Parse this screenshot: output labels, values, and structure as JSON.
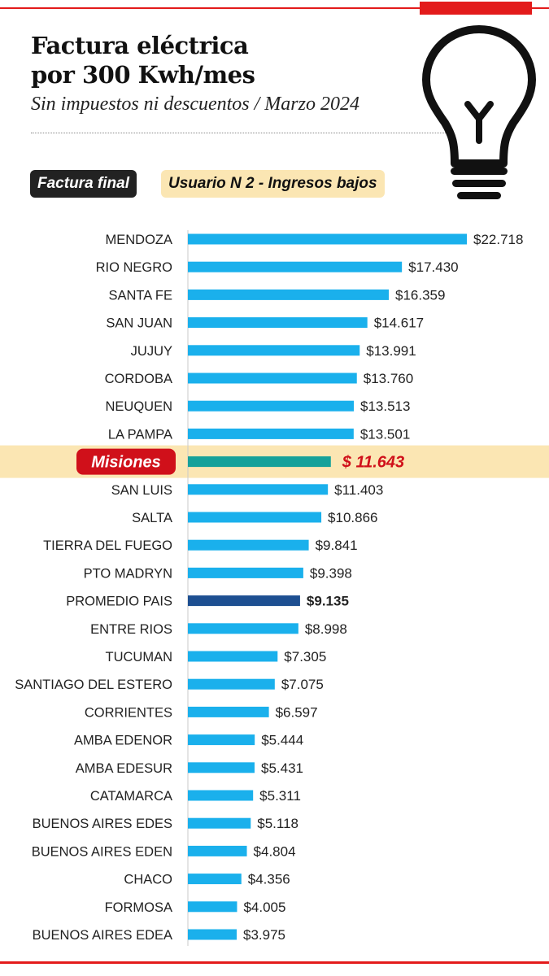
{
  "header": {
    "title_line1": "Factura eléctrica",
    "title_line2": "por 300 Kwh/mes",
    "subtitle": "Sin impuestos ni descuentos / Marzo 2024",
    "tag_dark": "Factura final",
    "tag_light": "Usuario N 2 - Ingresos bajos"
  },
  "colors": {
    "bar": "#1ab0ec",
    "highlight_bar": "#16a19a",
    "average_bar": "#1d4f91",
    "highlight_band": "#fbe6b3",
    "highlight_label_bg": "#d0101a",
    "accent_red": "#e31b1b"
  },
  "chart_data": {
    "type": "bar",
    "orientation": "horizontal",
    "title": "Factura eléctrica por 300 Kwh/mes",
    "xlabel": "",
    "ylabel": "",
    "xlim": [
      0,
      22718
    ],
    "grid": false,
    "categories": [
      "MENDOZA",
      "RIO NEGRO",
      "SANTA FE",
      "SAN JUAN",
      "JUJUY",
      "CORDOBA",
      "NEUQUEN",
      "LA PAMPA",
      "Misiones",
      "SAN LUIS",
      "SALTA",
      "TIERRA DEL FUEGO",
      "PTO MADRYN",
      "PROMEDIO PAIS",
      "ENTRE RIOS",
      "TUCUMAN",
      "SANTIAGO DEL ESTERO",
      "CORRIENTES",
      "AMBA EDENOR",
      "AMBA EDESUR",
      "CATAMARCA",
      "BUENOS AIRES EDES",
      "BUENOS AIRES EDEN",
      "CHACO",
      "FORMOSA",
      "BUENOS AIRES EDEA"
    ],
    "values": [
      22718,
      17430,
      16359,
      14617,
      13991,
      13760,
      13513,
      13501,
      11643,
      11403,
      10866,
      9841,
      9398,
      9135,
      8998,
      7305,
      7075,
      6597,
      5444,
      5431,
      5311,
      5118,
      4804,
      4356,
      4005,
      3975
    ],
    "value_labels": [
      "$22.718",
      "$17.430",
      "$16.359",
      "$14.617",
      "$13.991",
      "$13.760",
      "$13.513",
      "$13.501",
      "$ 11.643",
      "$11.403",
      "$10.866",
      "$9.841",
      "$9.398",
      "$9.135",
      "$8.998",
      "$7.305",
      "$7.075",
      "$6.597",
      "$5.444",
      "$5.431",
      "$5.311",
      "$5.118",
      "$4.804",
      "$4.356",
      "$4.005",
      "$3.975"
    ],
    "highlight_index": 8,
    "average_index": 13
  }
}
